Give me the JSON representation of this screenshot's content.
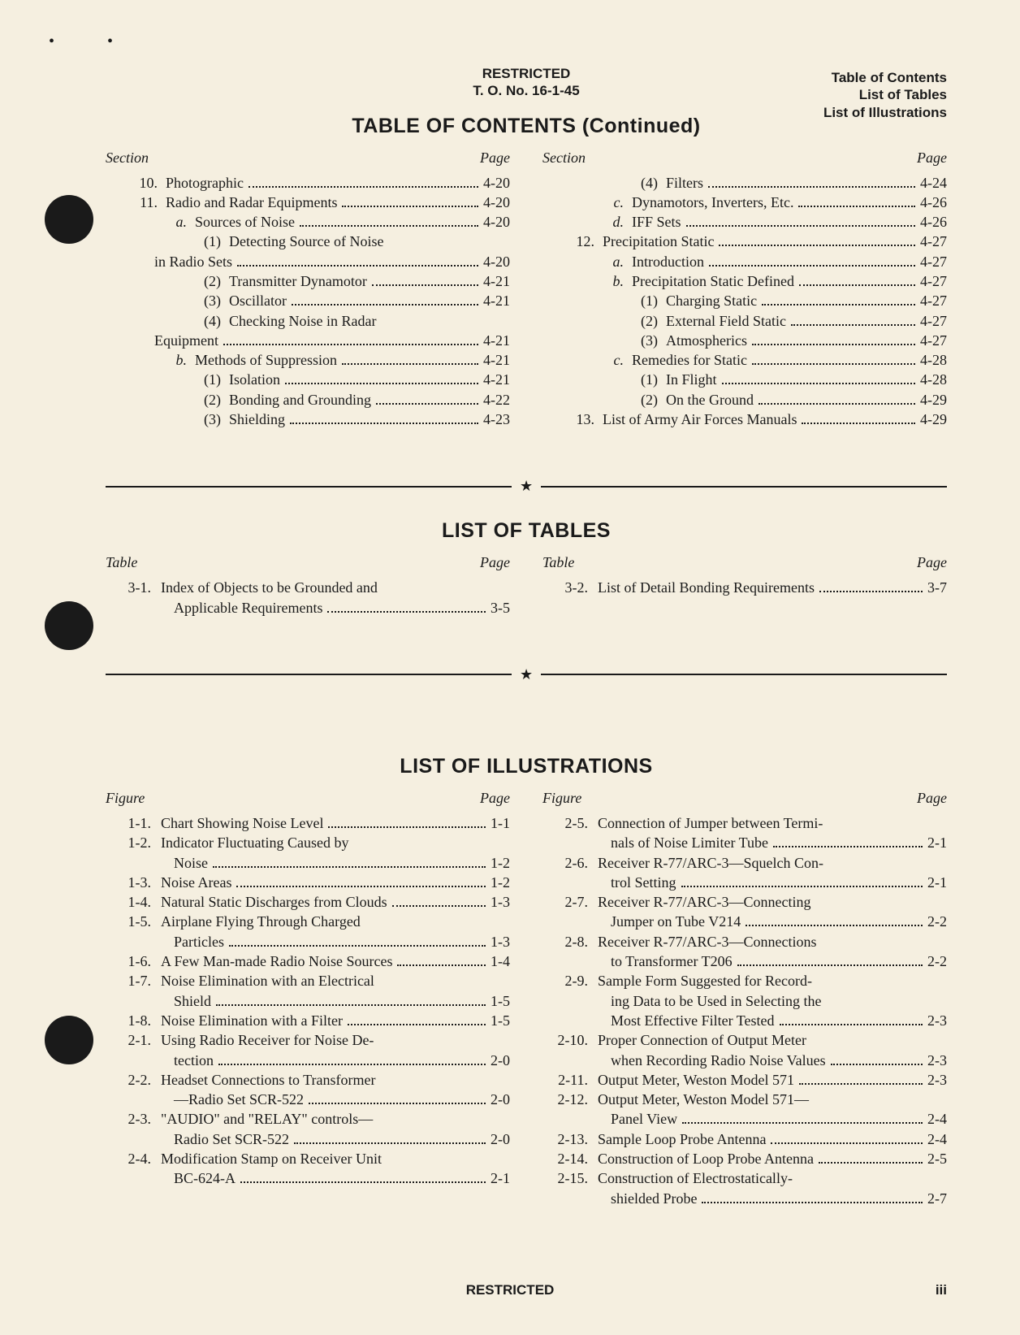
{
  "header": {
    "restricted": "RESTRICTED",
    "to_no": "T. O. No. 16-1-45",
    "right1": "Table of Contents",
    "right2": "List of Tables",
    "right3": "List of Illustrations"
  },
  "titles": {
    "toc": "TABLE OF CONTENTS (Continued)",
    "lot": "LIST OF TABLES",
    "loi": "LIST OF ILLUSTRATIONS"
  },
  "colheads": {
    "section": "Section",
    "page": "Page",
    "table": "Table",
    "figure": "Figure"
  },
  "toc_left": [
    {
      "indent": 0,
      "num": "10.",
      "text": "Photographic",
      "page": "4-20"
    },
    {
      "indent": 0,
      "num": "11.",
      "text": "Radio and Radar Equipments",
      "page": "4-20"
    },
    {
      "indent": 1,
      "num": "a.",
      "ital": true,
      "text": "Sources of Noise",
      "page": "4-20"
    },
    {
      "indent": 2,
      "num": "(1)",
      "text": "Detecting Source of Noise",
      "cont": "in Radio Sets",
      "page": "4-20"
    },
    {
      "indent": 2,
      "num": "(2)",
      "text": "Transmitter Dynamotor",
      "page": "4-21"
    },
    {
      "indent": 2,
      "num": "(3)",
      "text": "Oscillator",
      "page": "4-21"
    },
    {
      "indent": 2,
      "num": "(4)",
      "text": "Checking Noise in Radar",
      "cont": "Equipment",
      "page": "4-21"
    },
    {
      "indent": 1,
      "num": "b.",
      "ital": true,
      "text": "Methods of Suppression",
      "page": "4-21"
    },
    {
      "indent": 2,
      "num": "(1)",
      "text": "Isolation",
      "page": "4-21"
    },
    {
      "indent": 2,
      "num": "(2)",
      "text": "Bonding and Grounding",
      "page": "4-22"
    },
    {
      "indent": 2,
      "num": "(3)",
      "text": "Shielding",
      "page": "4-23"
    }
  ],
  "toc_right": [
    {
      "indent": 2,
      "num": "(4)",
      "text": "Filters",
      "page": "4-24"
    },
    {
      "indent": 1,
      "num": "c.",
      "ital": true,
      "text": "Dynamotors, Inverters, Etc.",
      "page": "4-26"
    },
    {
      "indent": 1,
      "num": "d.",
      "ital": true,
      "text": "IFF Sets",
      "page": "4-26"
    },
    {
      "indent": 0,
      "num": "12.",
      "text": "Precipitation Static",
      "page": "4-27"
    },
    {
      "indent": 1,
      "num": "a.",
      "ital": true,
      "text": "Introduction",
      "page": "4-27"
    },
    {
      "indent": 1,
      "num": "b.",
      "ital": true,
      "text": "Precipitation Static Defined",
      "page": "4-27"
    },
    {
      "indent": 2,
      "num": "(1)",
      "text": "Charging Static",
      "page": "4-27"
    },
    {
      "indent": 2,
      "num": "(2)",
      "text": "External Field Static",
      "page": "4-27"
    },
    {
      "indent": 2,
      "num": "(3)",
      "text": "Atmospherics",
      "page": "4-27"
    },
    {
      "indent": 1,
      "num": "c.",
      "ital": true,
      "text": "Remedies for Static",
      "page": "4-28"
    },
    {
      "indent": 2,
      "num": "(1)",
      "text": "In Flight",
      "page": "4-28"
    },
    {
      "indent": 2,
      "num": "(2)",
      "text": "On the Ground",
      "page": "4-29"
    },
    {
      "indent": 0,
      "num": "13.",
      "text": "List of Army Air Forces Manuals",
      "page": "4-29"
    }
  ],
  "lot_left": [
    {
      "num": "3-1.",
      "text": "Index of Objects to be Grounded and",
      "cont": "Applicable Requirements",
      "page": "3-5"
    }
  ],
  "lot_right": [
    {
      "num": "3-2.",
      "text": "List of Detail Bonding Requirements",
      "page": "3-7"
    }
  ],
  "loi_left": [
    {
      "num": "1-1.",
      "text": "Chart Showing Noise Level",
      "page": "1-1"
    },
    {
      "num": "1-2.",
      "text": "Indicator Fluctuating Caused by",
      "cont": "Noise",
      "page": "1-2"
    },
    {
      "num": "1-3.",
      "text": "Noise Areas",
      "page": "1-2"
    },
    {
      "num": "1-4.",
      "text": "Natural Static Discharges from Clouds",
      "page": "1-3"
    },
    {
      "num": "1-5.",
      "text": "Airplane Flying Through Charged",
      "cont": "Particles",
      "page": "1-3"
    },
    {
      "num": "1-6.",
      "text": "A Few Man-made Radio Noise Sources",
      "page": "1-4"
    },
    {
      "num": "1-7.",
      "text": "Noise Elimination with an Electrical",
      "cont": "Shield",
      "page": "1-5"
    },
    {
      "num": "1-8.",
      "text": "Noise Elimination with a Filter",
      "page": "1-5"
    },
    {
      "num": "2-1.",
      "text": "Using Radio Receiver for Noise De-",
      "cont": "tection",
      "page": "2-0"
    },
    {
      "num": "2-2.",
      "text": "Headset Connections to Transformer",
      "cont": "—Radio Set SCR-522",
      "page": "2-0"
    },
    {
      "num": "2-3.",
      "text": "\"AUDIO\" and \"RELAY\" controls—",
      "cont": "Radio Set SCR-522",
      "page": "2-0"
    },
    {
      "num": "2-4.",
      "text": "Modification Stamp on Receiver Unit",
      "cont": "BC-624-A",
      "page": "2-1"
    }
  ],
  "loi_right": [
    {
      "num": "2-5.",
      "text": "Connection of Jumper between Termi-",
      "cont": "nals of Noise Limiter Tube",
      "page": "2-1"
    },
    {
      "num": "2-6.",
      "text": "Receiver R-77/ARC-3—Squelch Con-",
      "cont": "trol Setting",
      "page": "2-1"
    },
    {
      "num": "2-7.",
      "text": "Receiver R-77/ARC-3—Connecting",
      "cont": "Jumper on Tube V214",
      "page": "2-2"
    },
    {
      "num": "2-8.",
      "text": "Receiver R-77/ARC-3—Connections",
      "cont": "to Transformer T206",
      "page": "2-2"
    },
    {
      "num": "2-9.",
      "text": "Sample Form Suggested for Record-",
      "cont": "ing Data to be Used in Selecting the",
      "cont2": "Most Effective Filter Tested",
      "page": "2-3"
    },
    {
      "num": "2-10.",
      "text": "Proper Connection of Output Meter",
      "cont": "when Recording Radio Noise Values",
      "page": "2-3"
    },
    {
      "num": "2-11.",
      "text": "Output Meter, Weston Model 571",
      "page": "2-3"
    },
    {
      "num": "2-12.",
      "text": "Output Meter, Weston Model 571—",
      "cont": "Panel View",
      "page": "2-4"
    },
    {
      "num": "2-13.",
      "text": "Sample Loop Probe Antenna",
      "page": "2-4"
    },
    {
      "num": "2-14.",
      "text": "Construction of Loop Probe Antenna",
      "page": "2-5"
    },
    {
      "num": "2-15.",
      "text": "Construction of Electrostatically-",
      "cont": "shielded Probe",
      "page": "2-7"
    }
  ],
  "footer": {
    "restricted": "RESTRICTED",
    "page": "iii"
  }
}
